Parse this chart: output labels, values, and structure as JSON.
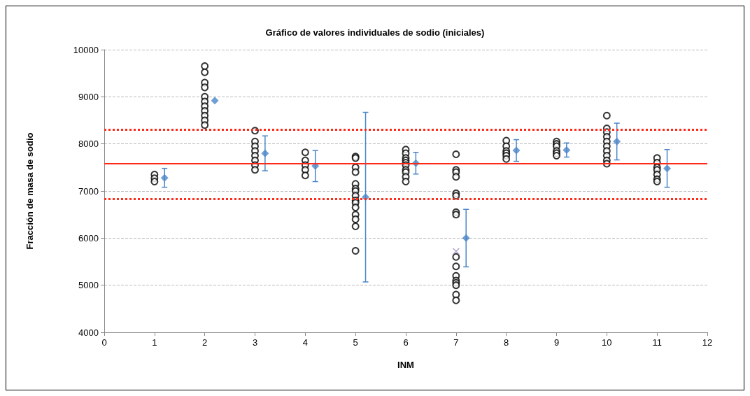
{
  "chart_data": {
    "type": "scatter",
    "title": "Gráfico de valores individuales de sodio (iniciales)",
    "xlabel": "INM",
    "ylabel": "Fracción de masa de sodio",
    "xlim": [
      0,
      12
    ],
    "xticks": [
      0,
      1,
      2,
      3,
      4,
      5,
      6,
      7,
      8,
      9,
      10,
      11,
      12
    ],
    "ylim": [
      4000,
      10000
    ],
    "yticks": [
      4000,
      5000,
      6000,
      7000,
      8000,
      9000,
      10000
    ],
    "grid": "y",
    "series": [
      {
        "marker": "circle",
        "color": "#000000",
        "x": [
          1,
          1,
          1,
          2,
          2,
          2,
          2,
          2,
          2,
          2,
          2,
          2,
          2,
          2,
          3,
          3,
          3,
          3,
          3,
          3,
          3,
          3,
          4,
          4,
          4,
          4,
          4,
          5,
          5,
          5,
          5,
          5,
          5,
          5,
          5,
          5,
          5,
          5,
          5,
          5,
          5,
          5,
          6,
          6,
          6,
          6,
          6,
          6,
          6,
          6,
          6,
          6,
          7,
          7,
          7,
          7,
          7,
          7,
          7,
          7,
          7,
          7,
          7,
          7,
          7,
          7,
          7,
          7,
          8,
          8,
          8,
          8,
          8,
          8,
          9,
          9,
          9,
          9,
          9,
          9,
          10,
          10,
          10,
          10,
          10,
          10,
          10,
          10,
          10,
          10,
          11,
          11,
          11,
          11,
          11,
          11,
          11
        ],
        "values": [
          7350,
          7270,
          7200,
          9650,
          9520,
          9300,
          9200,
          9000,
          8900,
          8800,
          8700,
          8600,
          8500,
          8400,
          8280,
          8050,
          7950,
          7850,
          7750,
          7650,
          7550,
          7450,
          7820,
          7650,
          7550,
          7450,
          7330,
          7730,
          7700,
          7500,
          7400,
          7150,
          7050,
          7000,
          6900,
          6800,
          6750,
          6650,
          6500,
          6400,
          6250,
          5730,
          7880,
          7800,
          7700,
          7650,
          7600,
          7550,
          7450,
          7400,
          7300,
          7200,
          7780,
          7450,
          7400,
          7300,
          6950,
          6900,
          6550,
          6500,
          5600,
          5400,
          5200,
          5100,
          5050,
          5000,
          4800,
          4680,
          8070,
          7950,
          7850,
          7800,
          7750,
          7680,
          8050,
          8000,
          7950,
          7850,
          7800,
          7750,
          8600,
          8330,
          8250,
          8150,
          8050,
          7950,
          7850,
          7750,
          7650,
          7580,
          7700,
          7600,
          7500,
          7450,
          7350,
          7250,
          7200
        ]
      },
      {
        "marker": "cross",
        "color": "#9a8cc0",
        "x": [
          7
        ],
        "values": [
          5720
        ]
      },
      {
        "marker": "diamond",
        "color": "#4a86c8",
        "x": [
          1.2,
          2.2,
          3.2,
          4.2,
          5.2,
          6.2,
          7.2,
          8.2,
          9.2,
          10.2,
          11.2
        ],
        "values": [
          7280,
          8920,
          7800,
          7530,
          6870,
          7590,
          6000,
          7860,
          7870,
          8050,
          7480
        ],
        "errors": [
          200,
          null,
          370,
          330,
          1800,
          230,
          610,
          230,
          150,
          390,
          400
        ]
      }
    ],
    "ref_lines": [
      {
        "axis": "y",
        "value": 7580,
        "color": "#ff2a1a",
        "line_style": "solid"
      },
      {
        "axis": "y",
        "value": 8300,
        "color": "#ff2a1a",
        "line_style": "dotted"
      },
      {
        "axis": "y",
        "value": 6840,
        "color": "#ff2a1a",
        "line_style": "dotted"
      }
    ]
  }
}
